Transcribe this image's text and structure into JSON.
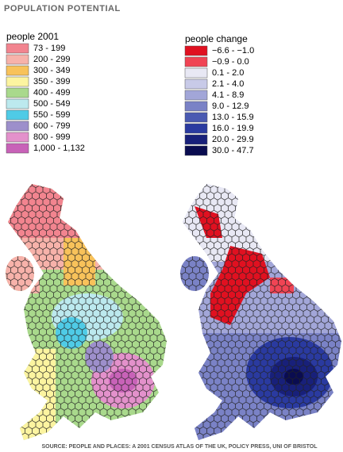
{
  "title": "POPULATION POTENTIAL",
  "legends": [
    {
      "title": "people 2001",
      "items": [
        {
          "label": "73 - 199",
          "color": "#f2848f"
        },
        {
          "label": "200 - 299",
          "color": "#f7b2aa"
        },
        {
          "label": "300 - 349",
          "color": "#f8c25a"
        },
        {
          "label": "350 - 399",
          "color": "#fcf4a0"
        },
        {
          "label": "400 - 499",
          "color": "#a9d98c"
        },
        {
          "label": "500 - 549",
          "color": "#bce9ee"
        },
        {
          "label": "550 - 599",
          "color": "#4fcbe6"
        },
        {
          "label": "600 - 799",
          "color": "#9d8fcb"
        },
        {
          "label": "800 - 999",
          "color": "#e391cb"
        },
        {
          "label": "1,000 - 1,132",
          "color": "#c862b8"
        }
      ]
    },
    {
      "title": "people change",
      "items": [
        {
          "label": "−6.6 - −1.0",
          "color": "#e01020"
        },
        {
          "label": "−0.9 - 0.0",
          "color": "#f04454"
        },
        {
          "label": "0.1 - 2.0",
          "color": "#e8e8f4"
        },
        {
          "label": "2.1 - 4.0",
          "color": "#c8cae8"
        },
        {
          "label": "4.1 - 8.9",
          "color": "#a2a6d8"
        },
        {
          "label": "9.0 - 12.9",
          "color": "#7a82c6"
        },
        {
          "label": "13.0 - 15.9",
          "color": "#4a5ab2"
        },
        {
          "label": "16.0 - 19.9",
          "color": "#2a3aa0"
        },
        {
          "label": "20.0 - 29.9",
          "color": "#18207a"
        },
        {
          "label": "30.0 - 47.7",
          "color": "#0a0c50"
        }
      ]
    }
  ],
  "source": "SOURCE: PEOPLE AND PLACES: A 2001 CENSUS ATLAS OF THE UK, POLICY PRESS, UNI OF BRISTOL"
}
